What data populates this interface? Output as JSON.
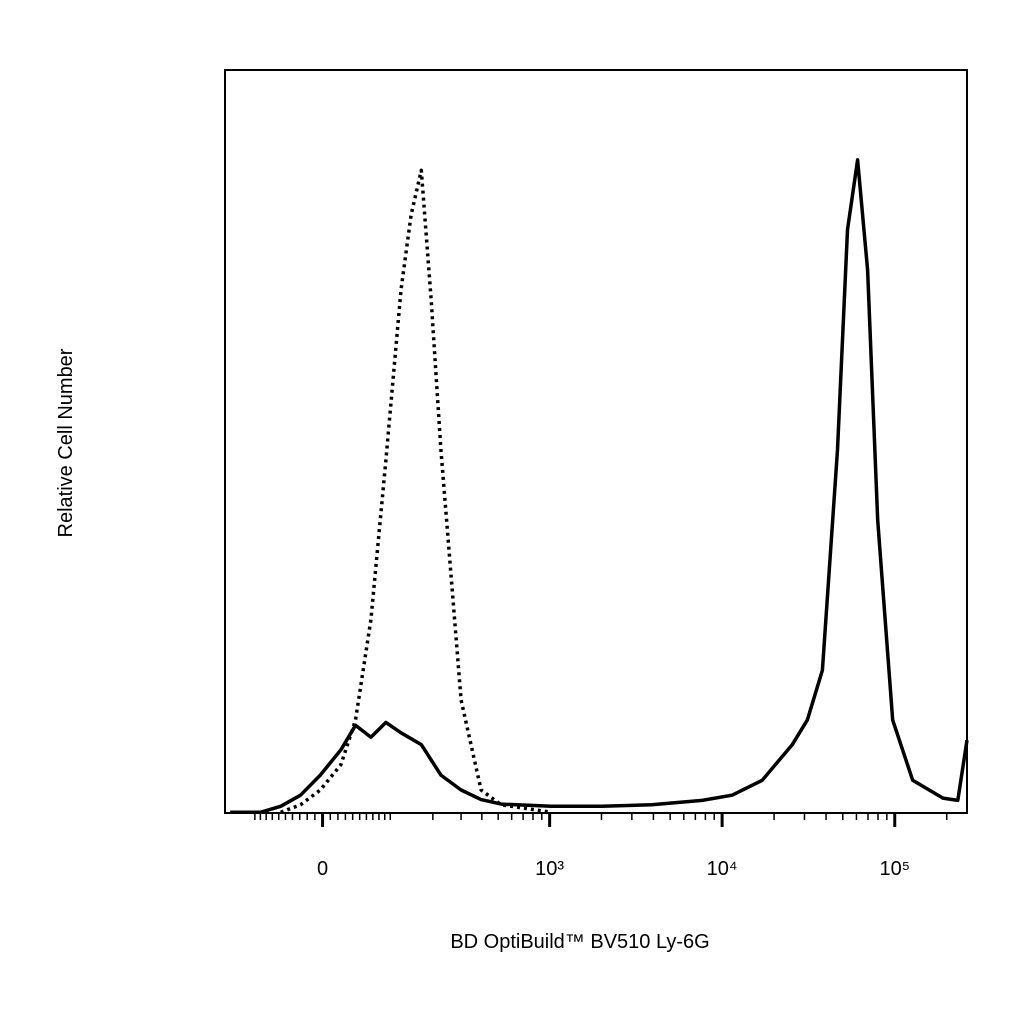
{
  "chart_data": {
    "type": "line",
    "xlabel": "BD OptiBuild™ BV510 Ly-6G",
    "ylabel": "Relative Cell Number",
    "xscale": "biexponential",
    "xlim": [
      -165,
      262144
    ],
    "ylim": [
      0,
      100
    ],
    "xticks": [
      {
        "value": 0,
        "label": "0"
      },
      {
        "value": 1000,
        "label": "10³"
      },
      {
        "value": 10000,
        "label": "10⁴"
      },
      {
        "value": 100000,
        "label": "10⁵"
      }
    ],
    "xminorticks": [
      -100,
      -90,
      -80,
      -70,
      -60,
      -50,
      -40,
      -30,
      -20,
      -10,
      10,
      20,
      30,
      40,
      50,
      60,
      70,
      80,
      90,
      100,
      200,
      300,
      400,
      500,
      600,
      700,
      800,
      900,
      2000,
      3000,
      4000,
      5000,
      6000,
      7000,
      8000,
      9000,
      20000,
      30000,
      40000,
      50000,
      60000,
      70000,
      80000,
      90000,
      200000
    ],
    "series": [
      {
        "color": "#000000",
        "style": "solid",
        "x": [
          -152,
          -90,
          -57,
          -29,
          -3,
          24,
          44,
          67,
          92,
          121,
          168,
          225,
          300,
          396,
          521,
          1025,
          2005,
          3909,
          7653,
          11427,
          17070,
          25500,
          31150,
          38100,
          46580,
          53260,
          60900,
          69650,
          79650,
          97300,
          127000,
          190000,
          232000,
          262144
        ],
        "values": [
          0.1,
          0.1,
          0.9,
          2.4,
          5.1,
          8.5,
          11.8,
          10.2,
          12.2,
          10.8,
          9.2,
          5.1,
          3.1,
          1.8,
          1.2,
          0.9,
          0.9,
          1.1,
          1.7,
          2.4,
          4.4,
          9.2,
          12.5,
          19.2,
          48.9,
          78.5,
          87.9,
          73.1,
          39.4,
          12.5,
          4.4,
          2.0,
          1.7,
          9.8
        ]
      },
      {
        "color": "#000000",
        "style": "dotted",
        "x": [
          -57,
          -29,
          -3,
          24,
          44,
          67,
          92,
          121,
          143,
          168,
          195,
          225,
          300,
          396,
          521,
          1025
        ],
        "values": [
          0.1,
          1.1,
          3.1,
          6.5,
          12.5,
          26,
          47.5,
          70.4,
          80.5,
          86.5,
          69,
          48.9,
          15.2,
          3.1,
          1.1,
          0.1
        ]
      }
    ]
  }
}
